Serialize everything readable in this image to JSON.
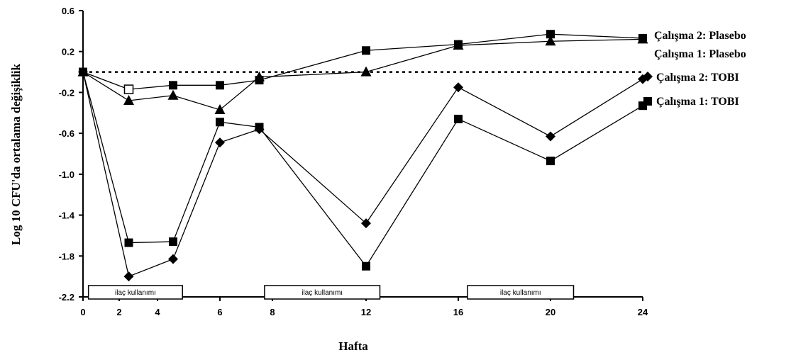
{
  "chart_data": {
    "type": "line",
    "title": "",
    "xlabel": "Hafta",
    "ylabel": "Log 10 CFU'da ortalama değişiklik",
    "xlim": [
      0,
      24
    ],
    "ylim": [
      -2.2,
      0.6
    ],
    "xticks": [
      0,
      2,
      4,
      6,
      8,
      12,
      16,
      20,
      24
    ],
    "yticks": [
      0.6,
      0.2,
      -0.2,
      -0.6,
      -1.0,
      -1.4,
      -1.8,
      -2.2
    ],
    "ytick_labels": [
      "0.6",
      "0.2",
      "-0.2",
      "-0.6",
      "-1.0",
      "-1.4",
      "-1.8",
      "-2.2"
    ],
    "reference_line": {
      "y": 0,
      "style": "dotted"
    },
    "grid": false,
    "legend": "right, inline labels",
    "series": [
      {
        "name": "Çalışma 2: Plasebo",
        "marker": "square",
        "x": [
          0,
          2.5,
          4.5,
          6,
          7.5,
          12,
          16,
          20,
          24
        ],
        "y": [
          0,
          -0.17,
          -0.13,
          -0.13,
          -0.08,
          0.21,
          0.27,
          0.37,
          0.33
        ]
      },
      {
        "name": "Çalışma 1: Plasebo",
        "marker": "triangle",
        "x": [
          0,
          2.5,
          4.5,
          6,
          7.5,
          12,
          16,
          20,
          24
        ],
        "y": [
          0,
          -0.28,
          -0.23,
          -0.37,
          -0.05,
          0,
          0.26,
          0.3,
          0.32
        ]
      },
      {
        "name": "Çalışma 2: TOBI",
        "marker": "diamond",
        "x": [
          0,
          2.5,
          4.5,
          6,
          7.5,
          12,
          16,
          20,
          24
        ],
        "y": [
          0,
          -2.0,
          -1.83,
          -0.69,
          -0.56,
          -1.48,
          -0.15,
          -0.63,
          -0.07
        ]
      },
      {
        "name": "Çalışma 1: TOBI",
        "marker": "square",
        "x": [
          0,
          2.5,
          4.5,
          6,
          7.5,
          12,
          16,
          20,
          24
        ],
        "y": [
          0,
          -1.67,
          -1.66,
          -0.49,
          -0.54,
          -1.9,
          -0.46,
          -0.87,
          -0.33
        ]
      }
    ],
    "annotations": [
      {
        "text": "ilaç kullanımı",
        "x_start": 0.3,
        "x_end": 4.8
      },
      {
        "text": "ilaç kullanımı",
        "x_start": 7.7,
        "x_end": 12.6
      },
      {
        "text": "ilaç kullanımı",
        "x_start": 16.4,
        "x_end": 21.0
      }
    ]
  }
}
